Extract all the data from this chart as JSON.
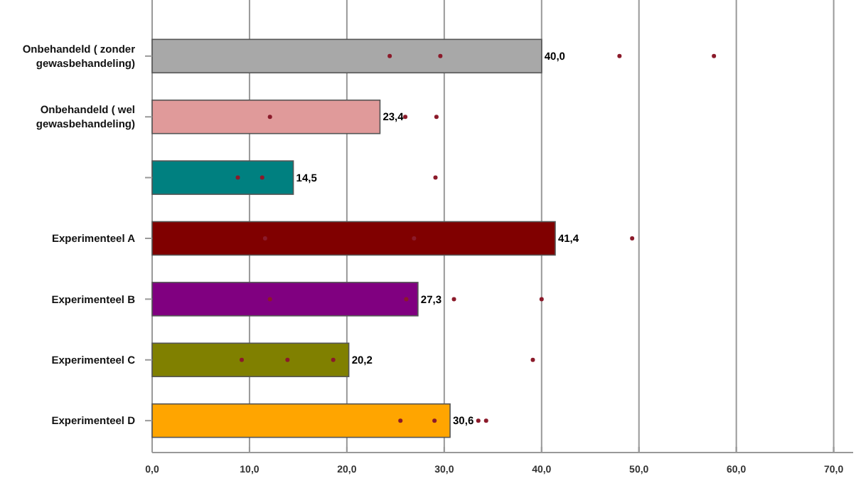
{
  "chart_data": {
    "type": "bar",
    "orientation": "horizontal",
    "categories": [
      "Onbehandeld ( zonder gewasbehandeling)",
      "Onbehandeld ( wel gewasbehandeling)",
      null,
      "Experimenteel A",
      "Experimenteel B",
      "Experimenteel C",
      "Experimenteel D"
    ],
    "series": [
      {
        "colors": [
          "#a8a8a8",
          "#e09a9a",
          "#008080",
          "#800000",
          "#800080",
          "#808000",
          "#ffa500"
        ],
        "values": [
          40.0,
          23.4,
          14.5,
          41.4,
          27.3,
          20.2,
          30.6
        ],
        "value_labels": [
          "40,0",
          "23,4",
          "14,5",
          "41,4",
          "27,3",
          "20,2",
          "30,6"
        ]
      },
      {
        "type": "scatter",
        "color": "#8b1a2a",
        "marker": "circle",
        "x": [
          "Onbehandeld ( zonder gewasbehandeling)",
          "Onbehandeld ( zonder gewasbehandeling)",
          "Onbehandeld ( zonder gewasbehandeling)",
          "Onbehandeld ( zonder gewasbehandeling)",
          "Onbehandeld ( wel gewasbehandeling)",
          "Onbehandeld ( wel gewasbehandeling)",
          "Onbehandeld ( wel gewasbehandeling)",
          null,
          null,
          null,
          "Experimenteel A",
          "Experimenteel A",
          "Experimenteel A",
          "Experimenteel B",
          "Experimenteel B",
          "Experimenteel B",
          "Experimenteel B",
          "Experimenteel C",
          "Experimenteel C",
          "Experimenteel C",
          "Experimenteel C",
          "Experimenteel D",
          "Experimenteel D",
          "Experimenteel D",
          "Experimenteel D"
        ],
        "values": [
          24.4,
          29.6,
          48.0,
          57.7,
          12.1,
          26.0,
          29.2,
          8.8,
          11.3,
          29.1,
          11.6,
          26.9,
          49.3,
          12.1,
          26.1,
          31.0,
          40.0,
          9.2,
          13.9,
          18.6,
          39.1,
          25.5,
          29.0,
          33.5,
          34.3
        ]
      }
    ],
    "xlim": [
      0,
      72
    ],
    "xticks": [
      {
        "value": 0,
        "label": "0,0"
      },
      {
        "value": 10,
        "label": "10,0"
      },
      {
        "value": 20,
        "label": "20,0"
      },
      {
        "value": 30,
        "label": "30,0"
      },
      {
        "value": 40,
        "label": "40,0"
      },
      {
        "value": 50,
        "label": "50,0"
      },
      {
        "value": 60,
        "label": "60,0"
      },
      {
        "value": 70,
        "label": "70,0"
      }
    ],
    "grid": "x"
  }
}
